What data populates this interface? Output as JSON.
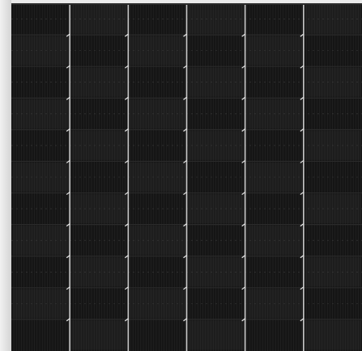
{
  "image": {
    "subject": "solar-panel-cell-grid",
    "columns": 6,
    "rows": 11,
    "colors": {
      "background": "#e6e6e6",
      "cell": "#151515",
      "cell_shade": "#1d1d1d",
      "busbar": "#c9c9c9",
      "finger": "#3a3a3a",
      "gap": "#2a2a2a"
    }
  }
}
